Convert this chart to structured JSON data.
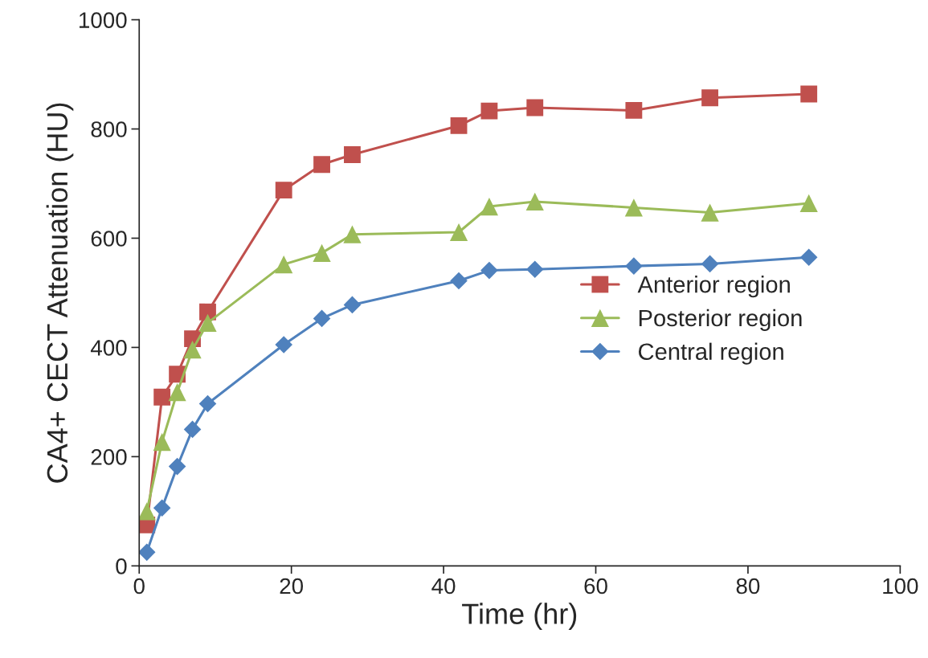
{
  "chart_data": {
    "type": "line",
    "xlabel": "Time (hr)",
    "ylabel": "CA4+ CECT Attenuation (HU)",
    "x": [
      1,
      3,
      5,
      7,
      9,
      19,
      24,
      28,
      42,
      46,
      52,
      65,
      75,
      88
    ],
    "series": [
      {
        "name": "Anterior region",
        "color": "#c0504d",
        "marker": "square",
        "values": [
          75,
          309,
          351,
          416,
          465,
          688,
          735,
          753,
          806,
          833,
          839,
          834,
          857,
          864
        ]
      },
      {
        "name": "Posterior region",
        "color": "#9bbb59",
        "marker": "triangle",
        "values": [
          100,
          227,
          318,
          396,
          445,
          552,
          573,
          607,
          611,
          658,
          667,
          656,
          647,
          664
        ]
      },
      {
        "name": "Central region",
        "color": "#4f81bd",
        "marker": "diamond",
        "values": [
          25,
          106,
          182,
          250,
          297,
          405,
          453,
          478,
          522,
          541,
          543,
          549,
          553,
          565
        ]
      }
    ],
    "xlim": [
      0,
      100
    ],
    "xticks": [
      0,
      20,
      40,
      60,
      80,
      100
    ],
    "ylim": [
      0,
      1000
    ],
    "yticks": [
      0,
      200,
      400,
      600,
      800,
      1000
    ],
    "grid": false,
    "legend": "right",
    "line_style": "solid"
  }
}
